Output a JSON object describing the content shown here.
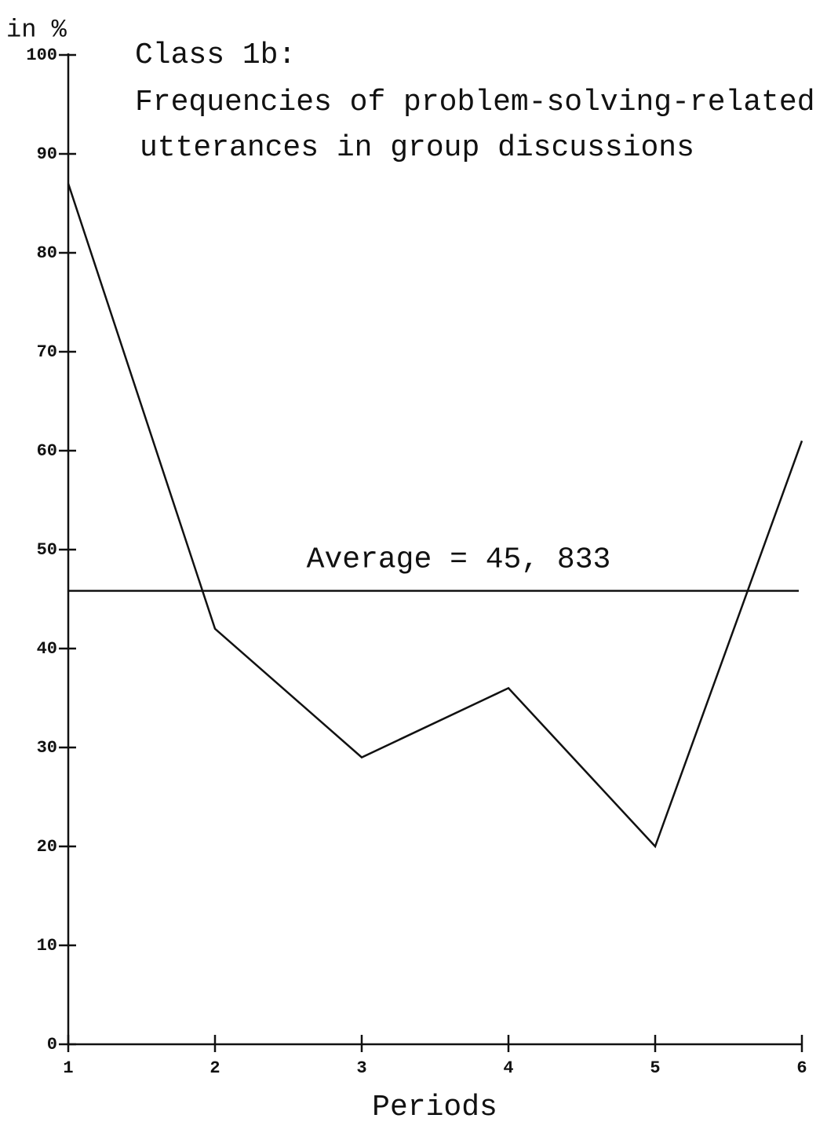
{
  "chart_data": {
    "type": "line",
    "title": [
      "Class 1b:",
      "Frequencies of problem-solving-related",
      "utterances in group discussions"
    ],
    "y_label": "in %",
    "x_label": "Periods",
    "x": [
      1,
      2,
      3,
      4,
      5,
      6
    ],
    "series": [
      {
        "name": null,
        "color": "#111111",
        "values": [
          87,
          42,
          29,
          36,
          20,
          61
        ]
      }
    ],
    "xlim": [
      1,
      6
    ],
    "xticks": [
      1,
      2,
      3,
      4,
      5,
      6
    ],
    "ylim": [
      0,
      100
    ],
    "yticks": [
      0,
      10,
      20,
      30,
      40,
      50,
      60,
      70,
      80,
      90,
      100
    ],
    "annotations": [
      {
        "label": "Average = 45, 833",
        "value": 45.833
      }
    ],
    "grid": false
  }
}
